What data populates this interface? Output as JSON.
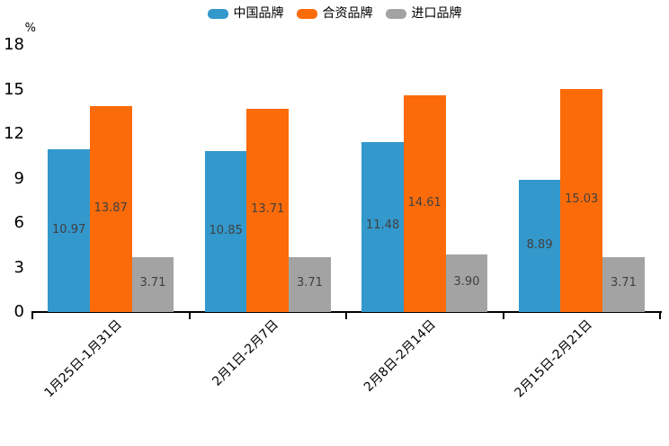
{
  "legend": {
    "items": [
      {
        "label": "中国品牌",
        "color": "#3398CC"
      },
      {
        "label": "合资品牌",
        "color": "#FC6B09"
      },
      {
        "label": "进口品牌",
        "color": "#A3A3A3"
      }
    ]
  },
  "chart_data": {
    "type": "bar",
    "title": "",
    "unit_label": "%",
    "categories": [
      "1月25日-1月31日",
      "2月1日-2月7日",
      "2月8日-2月14日",
      "2月15日-2月21日"
    ],
    "series": [
      {
        "name": "中国品牌",
        "color": "#3398CC",
        "values": [
          10.97,
          10.85,
          11.48,
          8.89
        ]
      },
      {
        "name": "合资品牌",
        "color": "#FC6B09",
        "values": [
          13.87,
          13.71,
          14.61,
          15.03
        ]
      },
      {
        "name": "进口品牌",
        "color": "#A3A3A3",
        "values": [
          3.71,
          3.71,
          3.9,
          3.71
        ]
      }
    ],
    "data_labels": [
      [
        "10.97",
        "13.87",
        "3.71"
      ],
      [
        "10.85",
        "13.71",
        "3.71"
      ],
      [
        "11.48",
        "14.61",
        "3.90"
      ],
      [
        "8.89",
        "15.03",
        "3.71"
      ]
    ],
    "y_ticks": [
      0,
      3,
      6,
      9,
      12,
      15,
      18
    ],
    "ylim": [
      0,
      18
    ],
    "grid": false,
    "legend_position": "top",
    "x_label_rotation_deg": 45,
    "axis_color": "#000000",
    "value_label_color": "#404040",
    "background": "#ffffff"
  }
}
